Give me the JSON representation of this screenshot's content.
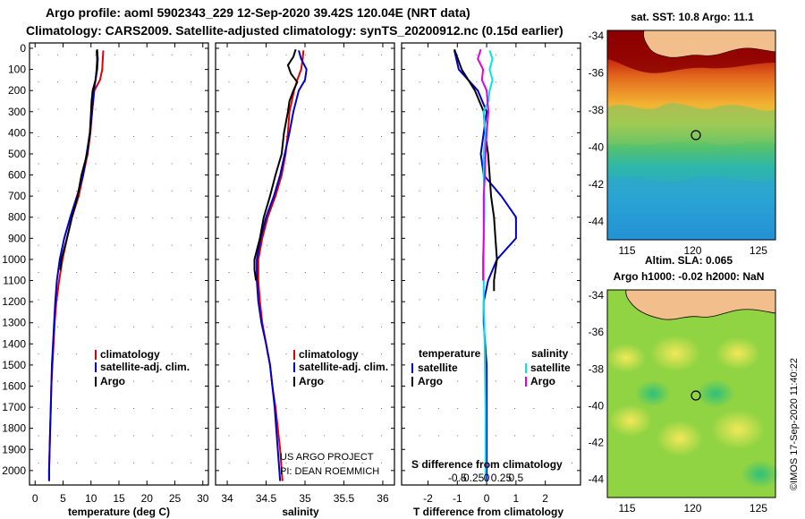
{
  "titles": {
    "line1": "Argo profile: aoml 5902343_229 12-Sep-2020 39.42S 120.04E (NRT data)",
    "line2": "Climatology: CARS2009. Satellite-adjusted climatology: synTS_20200912.nc (0.15d earlier)"
  },
  "colors": {
    "climatology": "#e00000",
    "satellite": "#0000cc",
    "argo": "#000000",
    "sat_salinity": "#00e5e5",
    "argo_salinity": "#e000e0"
  },
  "depth_ticks": [
    "0",
    "100",
    "200",
    "300",
    "400",
    "500",
    "600",
    "700",
    "800",
    "900",
    "1000",
    "1100",
    "1200",
    "1300",
    "1400",
    "1500",
    "1600",
    "1700",
    "1800",
    "1900",
    "2000"
  ],
  "credit": {
    "line1": "US ARGO PROJECT",
    "line2": "PI: DEAN ROEMMICH"
  },
  "imos_label": "©IMOS 17-Sep-2020 11:40:22",
  "maps": {
    "sst_title": "sat. SST: 10.8 Argo: 11.1",
    "sla_title1": "Altim. SLA: 0.065",
    "sla_title2": "Argo h1000: -0.02 h2000: NaN",
    "lat_ticks": [
      "-34",
      "-36",
      "-38",
      "-40",
      "-42",
      "-44"
    ],
    "lon_ticks": [
      "115",
      "120",
      "125"
    ]
  },
  "chart_data": [
    {
      "type": "line",
      "name": "temperature",
      "xlabel": "temperature (deg C)",
      "ylabel": "depth",
      "xlim": [
        -1,
        31
      ],
      "ylim": [
        2060,
        0
      ],
      "x_ticks": [
        "0",
        "5",
        "10",
        "15",
        "20",
        "25",
        "30"
      ],
      "legend": [
        "climatology",
        "satellite-adj. clim.",
        "Argo"
      ],
      "series": [
        {
          "name": "climatology",
          "depth": [
            10,
            50,
            100,
            150,
            200,
            300,
            400,
            500,
            600,
            700,
            800,
            900,
            1000,
            1100,
            1200,
            1300,
            1400,
            1500,
            1600,
            1700,
            1800,
            1900,
            2000,
            2050
          ],
          "values": [
            12.2,
            12.1,
            12.0,
            11.6,
            10.6,
            10.2,
            9.9,
            9.4,
            8.6,
            7.8,
            6.6,
            5.7,
            4.9,
            4.3,
            3.8,
            3.5,
            3.3,
            3.1,
            2.9,
            2.8,
            2.7,
            2.6,
            2.5,
            2.5
          ]
        },
        {
          "name": "satellite-adj. clim.",
          "depth": [
            10,
            50,
            100,
            150,
            200,
            300,
            400,
            500,
            600,
            700,
            800,
            900,
            1000,
            1100,
            1200,
            1300,
            1400,
            1500,
            1600,
            1700,
            1800,
            1900,
            2000,
            2050
          ],
          "values": [
            11.0,
            11.1,
            11.0,
            10.8,
            10.5,
            10.2,
            9.8,
            9.2,
            8.6,
            7.5,
            6.3,
            5.2,
            4.4,
            3.9,
            3.6,
            3.4,
            3.2,
            3.0,
            2.9,
            2.8,
            2.7,
            2.6,
            2.5,
            2.5
          ]
        },
        {
          "name": "Argo",
          "depth": [
            5,
            50,
            100,
            150,
            200,
            250,
            300,
            400,
            500,
            600,
            700,
            800,
            900,
            1000,
            1050
          ],
          "values": [
            11.1,
            11.2,
            11.1,
            10.8,
            10.3,
            10.1,
            10.0,
            9.8,
            9.3,
            8.3,
            7.6,
            6.6,
            5.7,
            4.7,
            4.5
          ]
        }
      ]
    },
    {
      "type": "line",
      "name": "salinity",
      "xlabel": "salinity",
      "xlim": [
        33.85,
        36.15
      ],
      "ylim": [
        2060,
        0
      ],
      "x_ticks": [
        "34",
        "34.5",
        "35",
        "35.5",
        "36"
      ],
      "legend": [
        "climatology",
        "satellite-adj. clim.",
        "Argo"
      ],
      "series": [
        {
          "name": "climatology",
          "depth": [
            10,
            50,
            100,
            150,
            200,
            300,
            400,
            500,
            600,
            700,
            800,
            900,
            1000,
            1100,
            1200,
            1300,
            1400,
            1500,
            1600,
            1700,
            1800,
            1900,
            2000,
            2050
          ],
          "values": [
            34.98,
            34.97,
            34.95,
            34.9,
            34.86,
            34.8,
            34.78,
            34.75,
            34.7,
            34.62,
            34.52,
            34.45,
            34.4,
            34.4,
            34.42,
            34.45,
            34.5,
            34.55,
            34.58,
            34.62,
            34.65,
            34.68,
            34.7,
            34.71
          ]
        },
        {
          "name": "satellite-adj. clim.",
          "depth": [
            10,
            50,
            100,
            150,
            200,
            300,
            400,
            500,
            600,
            700,
            800,
            900,
            1000,
            1100,
            1200,
            1300,
            1400,
            1500,
            1600,
            1700,
            1800,
            1900,
            2000,
            2050
          ],
          "values": [
            34.92,
            34.95,
            35.02,
            35.0,
            34.92,
            34.85,
            34.8,
            34.74,
            34.68,
            34.6,
            34.5,
            34.43,
            34.38,
            34.38,
            34.4,
            34.44,
            34.5,
            34.55,
            34.58,
            34.61,
            34.63,
            34.65,
            34.67,
            34.68
          ]
        },
        {
          "name": "Argo",
          "depth": [
            5,
            40,
            80,
            120,
            160,
            200,
            250,
            300,
            400,
            500,
            600,
            700,
            800,
            900,
            1000,
            1050,
            1100
          ],
          "values": [
            34.88,
            34.85,
            34.78,
            34.82,
            34.9,
            34.85,
            34.8,
            34.78,
            34.73,
            34.7,
            34.62,
            34.55,
            34.47,
            34.42,
            34.35,
            34.35,
            34.37
          ]
        }
      ]
    },
    {
      "type": "line",
      "name": "difference",
      "xlabel": "T difference from climatology",
      "xlabel2": "S difference from climatology",
      "xlim": [
        -2.9,
        3.2
      ],
      "ylim": [
        2060,
        0
      ],
      "x_ticks": [
        "-2",
        "-1",
        "0",
        "1",
        "2"
      ],
      "x_ticks_salinity": [
        "-0.5",
        "-0.25",
        "0",
        "0.25",
        "0.5"
      ],
      "legend_titles": [
        "temperature",
        "salinity"
      ],
      "legend": [
        "satellite",
        "Argo",
        "satellite",
        "Argo"
      ],
      "series": [
        {
          "name": "T satellite",
          "depth": [
            10,
            100,
            200,
            300,
            400,
            500,
            600,
            700,
            800,
            900,
            1000,
            1100,
            1200,
            1300,
            1400,
            1500,
            1600,
            1700,
            1800,
            1900,
            2000,
            2050
          ],
          "values": [
            -1.1,
            -0.95,
            -0.3,
            0.0,
            -0.1,
            -0.2,
            -0.1,
            0.5,
            1.0,
            1.0,
            0.35,
            0.05,
            -0.1,
            -0.1,
            -0.05,
            0.0,
            0.0,
            0.0,
            0.0,
            0.0,
            0.0,
            0.0
          ]
        },
        {
          "name": "T Argo",
          "depth": [
            5,
            100,
            200,
            300,
            400,
            500,
            600,
            700,
            800,
            900,
            1000,
            1100,
            1150
          ],
          "values": [
            -1.1,
            -0.85,
            -0.4,
            -0.1,
            -0.05,
            0.05,
            0.1,
            0.15,
            0.25,
            0.3,
            0.35,
            0.25,
            0.25
          ]
        },
        {
          "name": "S satellite",
          "depth": [
            10,
            50,
            100,
            150,
            200,
            250,
            300,
            400,
            500,
            600,
            700,
            800,
            900,
            1000,
            1100,
            1200,
            1300,
            1500,
            1700,
            1900,
            2050
          ],
          "values": [
            0.05,
            0.1,
            0.05,
            0.1,
            0.05,
            0.03,
            -0.05,
            -0.02,
            -0.05,
            -0.05,
            -0.04,
            -0.04,
            -0.05,
            -0.05,
            -0.05,
            -0.05,
            -0.04,
            -0.03,
            -0.02,
            -0.02,
            -0.02
          ]
        },
        {
          "name": "S Argo",
          "depth": [
            5,
            50,
            100,
            150,
            200,
            300,
            400,
            500,
            600,
            700,
            800,
            900,
            1000,
            1100
          ],
          "values": [
            -0.1,
            -0.15,
            -0.06,
            -0.08,
            0.0,
            0.03,
            0.0,
            -0.02,
            -0.03,
            -0.05,
            -0.05,
            -0.05,
            -0.06,
            -0.06
          ]
        }
      ]
    }
  ]
}
